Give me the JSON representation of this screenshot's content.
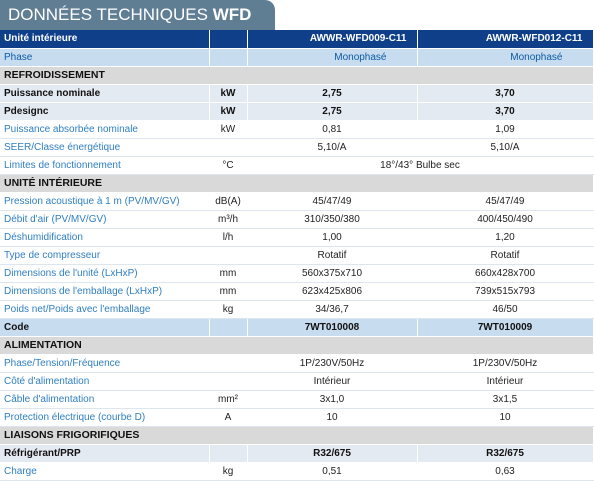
{
  "title": {
    "main": "DONNÉES TECHNIQUES",
    "model": "WFD"
  },
  "header": {
    "label": "Unité intérieure",
    "models": [
      "AWWR-WFD009-C11",
      "AWWR-WFD012-C11"
    ]
  },
  "phase": {
    "label": "Phase",
    "values": [
      "Monophasé",
      "Monophasé"
    ]
  },
  "sections": {
    "refroidissement": "REFROIDISSEMENT",
    "unite": "UNITÉ INTÉRIEURE",
    "alimentation": "ALIMENTATION",
    "liaisons": "LIAISONS FRIGORIFIQUES"
  },
  "refroidissement": [
    {
      "label": "Puissance nominale",
      "unit": "kW",
      "values": [
        "2,75",
        "3,70"
      ]
    },
    {
      "label": "Pdesignc",
      "unit": "kW",
      "values": [
        "2,75",
        "3,70"
      ]
    },
    {
      "label": "Puissance absorbée nominale",
      "unit": "kW",
      "values": [
        "0,81",
        "1,09"
      ]
    },
    {
      "label": "SEER/Classe énergétique",
      "unit": "",
      "values": [
        "5,10/A",
        "5,10/A"
      ]
    },
    {
      "label": "Limites de fonctionnement",
      "unit": "°C",
      "value": "18°/43° Bulbe sec"
    }
  ],
  "unite": [
    {
      "label": "Pression acoustique à 1 m (PV/MV/GV)",
      "unit": "dB(A)",
      "values": [
        "45/47/49",
        "45/47/49"
      ]
    },
    {
      "label": "Débit d'air (PV/MV/GV)",
      "unit": "m³/h",
      "values": [
        "310/350/380",
        "400/450/490"
      ]
    },
    {
      "label": "Déshumidification",
      "unit": "l/h",
      "values": [
        "1,00",
        "1,20"
      ]
    },
    {
      "label": "Type de compresseur",
      "unit": "",
      "values": [
        "Rotatif",
        "Rotatif"
      ]
    },
    {
      "label": "Dimensions de l'unité (LxHxP)",
      "unit": "mm",
      "values": [
        "560x375x710",
        "660x428x700"
      ]
    },
    {
      "label": "Dimensions de l'emballage (LxHxP)",
      "unit": "mm",
      "values": [
        "623x425x806",
        "739x515x793"
      ]
    },
    {
      "label": "Poids net/Poids avec l'emballage",
      "unit": "kg",
      "values": [
        "34/36,7",
        "46/50"
      ]
    }
  ],
  "code": {
    "label": "Code",
    "values": [
      "7WT010008",
      "7WT010009"
    ]
  },
  "alimentation": [
    {
      "label": "Phase/Tension/Fréquence",
      "unit": "",
      "values": [
        "1P/230V/50Hz",
        "1P/230V/50Hz"
      ]
    },
    {
      "label": "Côté d'alimentation",
      "unit": "",
      "values": [
        "Intérieur",
        "Intérieur"
      ]
    },
    {
      "label": "Câble d'alimentation",
      "unit": "mm²",
      "values": [
        "3x1,0",
        "3x1,5"
      ]
    },
    {
      "label": "Protection électrique (courbe D)",
      "unit": "A",
      "values": [
        "10",
        "10"
      ]
    }
  ],
  "refrigerant": {
    "label": "Réfrigérant/PRP",
    "values": [
      "R32/675",
      "R32/675"
    ]
  },
  "liaisons": [
    {
      "label": "Charge",
      "unit": "kg",
      "values": [
        "0,51",
        "0,63"
      ]
    }
  ]
}
